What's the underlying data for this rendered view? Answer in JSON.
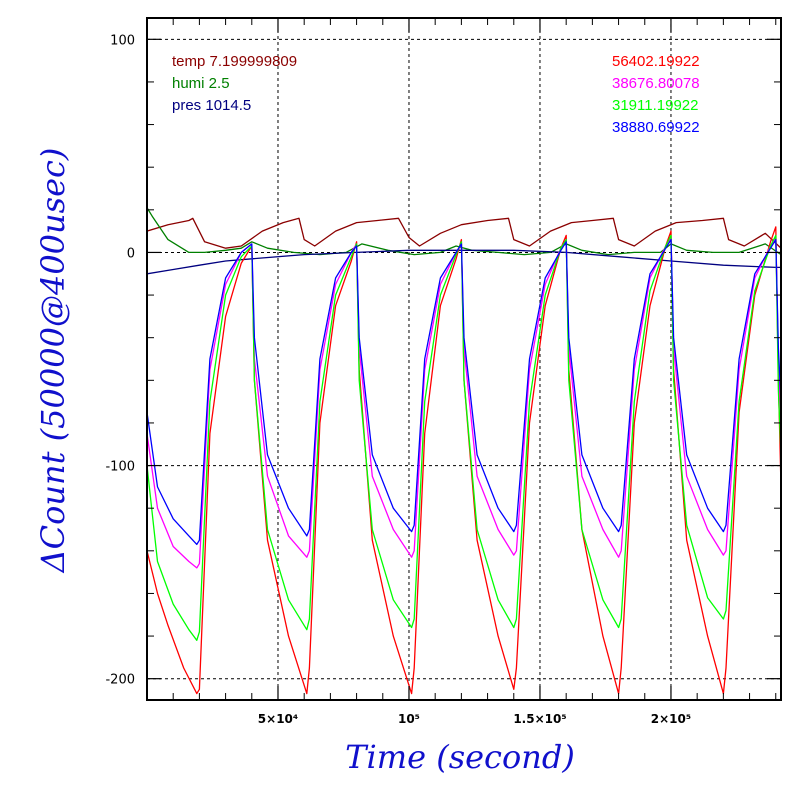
{
  "colors": {
    "temp": "#8b0000",
    "humi": "#008000",
    "pres": "#000080",
    "s1": "#ff0000",
    "s2": "#ff00ff",
    "s3": "#00ff00",
    "s4": "#0000ff",
    "axis_title": "#1010cc"
  },
  "chart_data": {
    "type": "line",
    "xlabel": "Time (second)",
    "ylabel": "ΔCount (50000@400usec)",
    "xlim": [
      0,
      242000
    ],
    "ylim": [
      -210,
      110
    ],
    "grid": true,
    "x_ticks": [
      {
        "value": 50000,
        "label": "5×10⁴"
      },
      {
        "value": 100000,
        "label": "10⁵"
      },
      {
        "value": 150000,
        "label": "1.5×10⁵"
      },
      {
        "value": 200000,
        "label": "2×10⁵"
      }
    ],
    "y_ticks": [
      {
        "value": 100,
        "label": "100"
      },
      {
        "value": 0,
        "label": "0"
      },
      {
        "value": -100,
        "label": "-100"
      },
      {
        "value": -200,
        "label": "-200"
      }
    ],
    "legend_left": [
      {
        "key": "temp",
        "label": "temp 7.199999809"
      },
      {
        "key": "humi",
        "label": "humi 2.5"
      },
      {
        "key": "pres",
        "label": "pres 1014.5"
      }
    ],
    "legend_right": [
      {
        "key": "s1",
        "label": "56402.19922"
      },
      {
        "key": "s2",
        "label": "38676.80078"
      },
      {
        "key": "s3",
        "label": "31911.19922"
      },
      {
        "key": "s4",
        "label": "38880.69922"
      }
    ],
    "series": [
      {
        "key": "temp",
        "name": "temp 7.199999809",
        "x": [
          0,
          8000,
          16000,
          17500,
          22000,
          30000,
          36000,
          44000,
          52000,
          58000,
          60000,
          64000,
          72000,
          80000,
          88000,
          96000,
          100000,
          104000,
          112000,
          120000,
          130000,
          138000,
          140000,
          146000,
          154000,
          162000,
          170000,
          178000,
          180000,
          186000,
          194000,
          202000,
          212000,
          220000,
          222000,
          228000,
          236000,
          242000
        ],
        "y": [
          10,
          13,
          15,
          16,
          5,
          2,
          3,
          10,
          14,
          16,
          6,
          3,
          10,
          14,
          15,
          16,
          7,
          3,
          9,
          13,
          15,
          16,
          6,
          3,
          10,
          14,
          15,
          16,
          6,
          3,
          10,
          14,
          15,
          16,
          6,
          3,
          9,
          2
        ]
      },
      {
        "key": "humi",
        "name": "humi 2.5",
        "x": [
          0,
          2000,
          8000,
          16000,
          22000,
          30000,
          36000,
          40000,
          46000,
          56000,
          66000,
          76000,
          82000,
          92000,
          102000,
          112000,
          118000,
          124000,
          134000,
          144000,
          154000,
          160000,
          166000,
          176000,
          186000,
          196000,
          200000,
          206000,
          216000,
          226000,
          236000,
          242000
        ],
        "y": [
          21,
          17,
          6,
          0,
          0,
          1,
          2,
          5,
          2,
          0,
          -1,
          0,
          4,
          1,
          -1,
          0,
          3,
          1,
          0,
          -1,
          0,
          4,
          1,
          -1,
          0,
          0,
          4,
          1,
          0,
          0,
          4,
          -1
        ]
      },
      {
        "key": "pres",
        "name": "pres 1014.5",
        "x": [
          0,
          10000,
          20000,
          30000,
          40000,
          60000,
          80000,
          100000,
          120000,
          140000,
          160000,
          180000,
          200000,
          220000,
          240000,
          242000
        ],
        "y": [
          -10,
          -8,
          -6,
          -4,
          -3,
          -1,
          0,
          1,
          1,
          1,
          0,
          -2,
          -4,
          -6,
          -7,
          -7
        ]
      },
      {
        "key": "s1",
        "name": "56402.19922",
        "x": [
          0,
          4000,
          8000,
          14000,
          19000,
          20000,
          24000,
          30000,
          36000,
          40000,
          41000,
          46000,
          54000,
          61000,
          62000,
          66000,
          72000,
          78000,
          80000,
          81000,
          86000,
          94000,
          101000,
          102000,
          106000,
          112000,
          118000,
          120000,
          121000,
          126000,
          134000,
          140000,
          141000,
          146000,
          152000,
          158000,
          160000,
          161000,
          166000,
          174000,
          180000,
          181000,
          186000,
          192000,
          198000,
          200000,
          201000,
          206000,
          214000,
          220000,
          221000,
          226000,
          232000,
          238000,
          240000,
          241000,
          242000
        ],
        "y": [
          -140,
          -160,
          -175,
          -195,
          -207,
          -205,
          -85,
          -30,
          -5,
          3,
          -60,
          -135,
          -180,
          -207,
          -195,
          -80,
          -25,
          -4,
          5,
          -55,
          -135,
          -180,
          -207,
          -195,
          -85,
          -25,
          -3,
          6,
          -60,
          -135,
          -180,
          -205,
          -195,
          -80,
          -25,
          2,
          8,
          -55,
          -130,
          -180,
          -207,
          -195,
          -80,
          -25,
          3,
          10,
          -55,
          -135,
          -180,
          -207,
          -195,
          -75,
          -20,
          5,
          12,
          -60,
          -110
        ]
      },
      {
        "key": "s2",
        "name": "38676.80078",
        "x": [
          0,
          4000,
          10000,
          16000,
          19000,
          20000,
          24000,
          30000,
          36000,
          40000,
          41000,
          46000,
          54000,
          61000,
          62000,
          66000,
          72000,
          78000,
          80000,
          81000,
          86000,
          94000,
          101000,
          102000,
          106000,
          112000,
          118000,
          120000,
          121000,
          126000,
          134000,
          140000,
          141000,
          146000,
          152000,
          158000,
          160000,
          161000,
          166000,
          174000,
          180000,
          181000,
          186000,
          192000,
          198000,
          200000,
          201000,
          206000,
          214000,
          220000,
          221000,
          226000,
          232000,
          238000,
          240000,
          241000,
          242000
        ],
        "y": [
          -85,
          -120,
          -138,
          -145,
          -148,
          -146,
          -55,
          -15,
          0,
          4,
          -50,
          -105,
          -133,
          -143,
          -140,
          -55,
          -15,
          0,
          4,
          -45,
          -105,
          -130,
          -143,
          -140,
          -55,
          -15,
          0,
          4,
          -45,
          -105,
          -130,
          -142,
          -140,
          -55,
          -15,
          2,
          6,
          -45,
          -105,
          -130,
          -143,
          -140,
          -55,
          -12,
          3,
          7,
          -45,
          -105,
          -130,
          -142,
          -140,
          -55,
          -12,
          3,
          7,
          -50,
          -80
        ]
      },
      {
        "key": "s3",
        "name": "31911.19922",
        "x": [
          0,
          4000,
          10000,
          16000,
          19000,
          20000,
          24000,
          30000,
          36000,
          40000,
          41000,
          46000,
          54000,
          61000,
          62000,
          66000,
          72000,
          78000,
          80000,
          81000,
          86000,
          94000,
          101000,
          102000,
          106000,
          112000,
          118000,
          120000,
          121000,
          126000,
          134000,
          140000,
          141000,
          146000,
          152000,
          158000,
          160000,
          161000,
          166000,
          174000,
          180000,
          181000,
          186000,
          192000,
          198000,
          200000,
          201000,
          206000,
          214000,
          220000,
          221000,
          226000,
          232000,
          238000,
          240000,
          241000,
          242000
        ],
        "y": [
          -100,
          -145,
          -165,
          -177,
          -182,
          -178,
          -70,
          -20,
          -2,
          3,
          -60,
          -130,
          -163,
          -177,
          -172,
          -70,
          -20,
          -2,
          4,
          -60,
          -130,
          -163,
          -176,
          -172,
          -70,
          -20,
          -1,
          5,
          -60,
          -130,
          -163,
          -176,
          -172,
          -70,
          -20,
          2,
          6,
          -60,
          -130,
          -163,
          -176,
          -172,
          -70,
          -18,
          3,
          8,
          -60,
          -128,
          -162,
          -172,
          -168,
          -70,
          -18,
          3,
          8,
          -65,
          -95
        ]
      },
      {
        "key": "s4",
        "name": "38880.69922",
        "x": [
          0,
          4000,
          10000,
          16000,
          19000,
          20000,
          24000,
          30000,
          36000,
          40000,
          41000,
          46000,
          54000,
          61000,
          62000,
          66000,
          72000,
          78000,
          80000,
          81000,
          86000,
          94000,
          101000,
          102000,
          106000,
          112000,
          118000,
          120000,
          121000,
          126000,
          134000,
          140000,
          141000,
          146000,
          152000,
          158000,
          160000,
          161000,
          166000,
          174000,
          180000,
          181000,
          186000,
          192000,
          198000,
          200000,
          201000,
          206000,
          214000,
          220000,
          221000,
          226000,
          232000,
          238000,
          240000,
          241000,
          242000
        ],
        "y": [
          -75,
          -110,
          -125,
          -133,
          -137,
          -135,
          -50,
          -12,
          0,
          4,
          -40,
          -95,
          -120,
          -133,
          -130,
          -50,
          -12,
          0,
          3,
          -40,
          -95,
          -120,
          -131,
          -128,
          -50,
          -12,
          0,
          4,
          -40,
          -95,
          -120,
          -131,
          -128,
          -50,
          -12,
          1,
          5,
          -40,
          -95,
          -120,
          -131,
          -128,
          -50,
          -10,
          2,
          6,
          -40,
          -95,
          -120,
          -131,
          -128,
          -50,
          -10,
          2,
          6,
          -45,
          -70
        ]
      }
    ]
  }
}
